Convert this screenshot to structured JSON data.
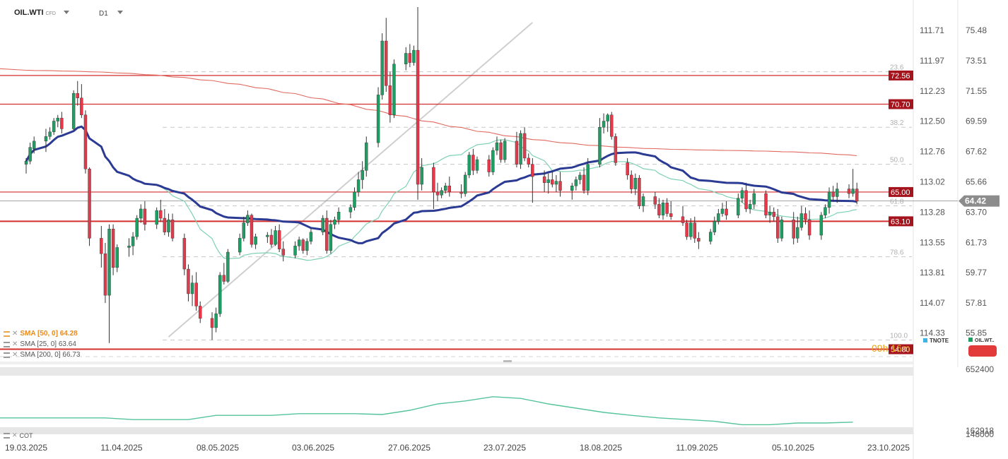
{
  "header": {
    "symbol": "OIL.WTI",
    "instrument_type": "CFD",
    "timeframe": "D1"
  },
  "legend": {
    "sma50": "SMA [50, 0] 64.28",
    "sma25": "SMA [25, 0] 63.64",
    "sma200": "SMA [200, 0] 66.73"
  },
  "countdown": "09h 16m",
  "tnote_label": "TNOTE",
  "oil_label": "OIL.WT..",
  "cot_label": "COT",
  "colors": {
    "bull": "#1e9e62",
    "bear": "#e23a4a",
    "sma50": "#2b3a93",
    "sma25": "#7fd1b3",
    "sma200": "#e06a60",
    "level": "#d32f2f",
    "tag": "#a5131c"
  },
  "chart_data": {
    "type": "candlestick",
    "x_tick_labels": [
      "19.03.2025",
      "11.04.2025",
      "08.05.2025",
      "03.06.2025",
      "27.06.2025",
      "23.07.2025",
      "18.08.2025",
      "11.09.2025",
      "05.10.2025",
      "23.10.2025"
    ],
    "right_axis": {
      "ticks": [
        "75.48",
        "73.51",
        "71.55",
        "69.59",
        "67.62",
        "65.66",
        "63.70",
        "61.73",
        "59.77",
        "57.81",
        "55.85"
      ],
      "range": [
        54.0,
        77.0
      ]
    },
    "left_axis": {
      "label": "TNOTE",
      "ticks": [
        "111.71",
        "111.97",
        "112.23",
        "112.50",
        "112.76",
        "113.02",
        "113.28",
        "113.55",
        "113.81",
        "114.07",
        "114.33"
      ]
    },
    "current_price": "64.42",
    "levels": [
      {
        "value": 72.56,
        "label": "72.56"
      },
      {
        "value": 70.7,
        "label": "70.70"
      },
      {
        "value": 65.0,
        "label": "65.00"
      },
      {
        "value": 63.1,
        "label": "63.10"
      },
      {
        "value": 54.8,
        "label": "54.80"
      }
    ],
    "fibonacci": [
      {
        "value": 72.8,
        "label": "23.6"
      },
      {
        "value": 69.2,
        "label": "38.2"
      },
      {
        "value": 66.8,
        "label": "50.0"
      },
      {
        "value": 64.1,
        "label": "61.8"
      },
      {
        "value": 60.8,
        "label": "78.6"
      },
      {
        "value": 55.4,
        "label": "100.0"
      }
    ],
    "trendline": [
      [
        "2025-04-24",
        55.6
      ],
      [
        "2025-07-25",
        76.0
      ]
    ],
    "candles": [
      [
        "2025-03-19",
        66.8,
        67.2,
        66.2,
        67.0
      ],
      [
        "2025-03-20",
        67.0,
        68.2,
        66.8,
        67.9
      ],
      [
        "2025-03-21",
        67.8,
        68.6,
        67.5,
        68.3
      ],
      [
        "2025-03-24",
        68.3,
        69.1,
        67.6,
        68.6
      ],
      [
        "2025-03-25",
        68.6,
        69.2,
        68.4,
        68.9
      ],
      [
        "2025-03-26",
        68.9,
        69.8,
        68.7,
        69.6
      ],
      [
        "2025-03-27",
        69.6,
        70.0,
        69.2,
        69.8
      ],
      [
        "2025-03-28",
        69.8,
        70.2,
        68.8,
        69.1
      ],
      [
        "2025-03-31",
        69.1,
        71.6,
        69.0,
        71.4
      ],
      [
        "2025-04-01",
        71.4,
        72.2,
        70.6,
        71.1
      ],
      [
        "2025-04-02",
        71.1,
        72.0,
        69.8,
        70.0
      ],
      [
        "2025-04-03",
        70.0,
        70.3,
        66.2,
        66.5
      ],
      [
        "2025-04-04",
        66.5,
        66.6,
        61.5,
        62.0
      ],
      [
        "2025-04-07",
        62.0,
        62.8,
        60.1,
        61.0
      ],
      [
        "2025-04-08",
        61.0,
        61.7,
        57.8,
        58.3
      ],
      [
        "2025-04-09",
        58.3,
        62.9,
        55.2,
        62.6
      ],
      [
        "2025-04-10",
        62.6,
        62.9,
        59.6,
        60.1
      ],
      [
        "2025-04-11",
        60.1,
        61.6,
        59.8,
        61.4
      ],
      [
        "2025-04-14",
        61.4,
        62.0,
        60.8,
        61.5
      ],
      [
        "2025-04-15",
        61.5,
        62.4,
        60.9,
        62.1
      ],
      [
        "2025-04-16",
        62.1,
        63.5,
        61.9,
        63.3
      ],
      [
        "2025-04-17",
        63.3,
        64.2,
        63.0,
        63.9
      ],
      [
        "2025-04-18",
        63.9,
        64.4,
        62.5,
        62.9
      ],
      [
        "2025-04-21",
        62.9,
        64.0,
        62.6,
        63.8
      ],
      [
        "2025-04-22",
        63.8,
        64.5,
        63.1,
        63.3
      ],
      [
        "2025-04-23",
        63.3,
        63.9,
        62.2,
        62.4
      ],
      [
        "2025-04-24",
        62.4,
        63.6,
        62.1,
        63.2
      ],
      [
        "2025-04-25",
        63.2,
        63.6,
        61.8,
        62.0
      ],
      [
        "2025-04-28",
        62.0,
        62.3,
        59.6,
        60.0
      ],
      [
        "2025-04-29",
        60.0,
        60.3,
        57.9,
        58.4
      ],
      [
        "2025-04-30",
        58.4,
        59.6,
        57.6,
        59.1
      ],
      [
        "2025-05-01",
        59.1,
        59.8,
        57.3,
        57.6
      ],
      [
        "2025-05-02",
        57.6,
        57.9,
        56.5,
        56.8
      ],
      [
        "2025-05-05",
        56.8,
        57.2,
        55.4,
        56.2
      ],
      [
        "2025-05-06",
        56.2,
        57.5,
        55.9,
        57.1
      ],
      [
        "2025-05-07",
        57.1,
        59.8,
        56.9,
        59.6
      ],
      [
        "2025-05-08",
        59.6,
        60.4,
        59.0,
        59.2
      ],
      [
        "2025-05-09",
        59.2,
        61.3,
        59.1,
        61.1
      ],
      [
        "2025-05-12",
        61.1,
        62.3,
        60.9,
        62.0
      ],
      [
        "2025-05-13",
        62.0,
        63.4,
        61.8,
        63.0
      ],
      [
        "2025-05-14",
        63.0,
        63.8,
        62.8,
        63.5
      ],
      [
        "2025-05-15",
        63.5,
        63.6,
        61.4,
        61.6
      ],
      [
        "2025-05-16",
        61.6,
        62.3,
        61.3,
        62.1
      ],
      [
        "2025-05-19",
        62.1,
        62.4,
        61.7,
        62.2
      ],
      [
        "2025-05-20",
        62.2,
        62.6,
        61.4,
        61.6
      ],
      [
        "2025-05-21",
        61.6,
        62.8,
        61.5,
        62.5
      ],
      [
        "2025-05-22",
        62.5,
        62.9,
        61.1,
        61.3
      ],
      [
        "2025-05-23",
        61.3,
        61.8,
        60.5,
        60.9
      ],
      [
        "2025-05-26",
        60.9,
        61.8,
        60.7,
        61.5
      ],
      [
        "2025-05-27",
        61.5,
        62.1,
        61.2,
        61.9
      ],
      [
        "2025-05-28",
        61.9,
        62.0,
        61.0,
        61.2
      ],
      [
        "2025-05-29",
        61.2,
        62.0,
        60.9,
        61.8
      ],
      [
        "2025-05-30",
        61.8,
        62.6,
        61.6,
        62.4
      ],
      [
        "2025-06-02",
        62.4,
        63.5,
        62.2,
        63.3
      ],
      [
        "2025-06-03",
        63.3,
        63.8,
        61.0,
        61.2
      ],
      [
        "2025-06-04",
        61.2,
        63.2,
        61.0,
        62.9
      ],
      [
        "2025-06-05",
        62.9,
        63.4,
        62.6,
        63.2
      ],
      [
        "2025-06-06",
        63.2,
        64.0,
        62.9,
        63.7
      ],
      [
        "2025-06-09",
        63.7,
        64.2,
        63.3,
        64.0
      ],
      [
        "2025-06-10",
        64.0,
        65.3,
        63.8,
        65.0
      ],
      [
        "2025-06-11",
        65.0,
        66.3,
        64.7,
        65.8
      ],
      [
        "2025-06-12",
        65.8,
        67.0,
        65.2,
        66.4
      ],
      [
        "2025-06-13",
        66.4,
        68.6,
        66.0,
        68.2
      ],
      [
        "2025-06-16",
        68.2,
        71.8,
        67.9,
        71.3
      ],
      [
        "2025-06-17",
        71.3,
        75.3,
        71.0,
        74.8
      ],
      [
        "2025-06-18",
        74.8,
        76.3,
        71.5,
        71.9
      ],
      [
        "2025-06-19",
        71.9,
        72.8,
        69.5,
        70.0
      ],
      [
        "2025-06-20",
        70.0,
        73.6,
        69.8,
        73.3
      ],
      [
        "2025-06-23",
        73.3,
        74.4,
        72.9,
        74.0
      ],
      [
        "2025-06-24",
        74.0,
        74.6,
        73.1,
        73.4
      ],
      [
        "2025-06-25",
        73.4,
        74.5,
        73.2,
        74.2
      ],
      [
        "2025-06-26",
        74.2,
        77.0,
        64.5,
        65.5
      ],
      [
        "2025-06-27",
        65.5,
        67.2,
        65.1,
        66.6
      ],
      [
        "2025-06-30",
        66.6,
        66.9,
        63.9,
        65.0
      ],
      [
        "2025-07-01",
        65.0,
        65.6,
        64.4,
        64.8
      ],
      [
        "2025-07-02",
        64.8,
        65.3,
        64.6,
        65.1
      ],
      [
        "2025-07-03",
        65.1,
        65.6,
        64.9,
        65.4
      ],
      [
        "2025-07-04",
        65.4,
        66.0,
        64.7,
        65.0
      ],
      [
        "2025-07-07",
        65.0,
        65.5,
        64.6,
        64.9
      ],
      [
        "2025-07-08",
        64.9,
        66.3,
        64.7,
        66.1
      ],
      [
        "2025-07-09",
        66.1,
        67.6,
        65.9,
        67.4
      ],
      [
        "2025-07-10",
        67.4,
        67.8,
        66.1,
        66.4
      ],
      [
        "2025-07-11",
        66.4,
        67.3,
        66.2,
        67.1
      ],
      [
        "2025-07-14",
        67.1,
        67.4,
        66.0,
        66.3
      ],
      [
        "2025-07-15",
        66.3,
        67.9,
        66.1,
        67.7
      ],
      [
        "2025-07-16",
        67.7,
        68.6,
        67.4,
        68.2
      ],
      [
        "2025-07-17",
        68.2,
        68.4,
        66.9,
        67.1
      ],
      [
        "2025-07-18",
        67.1,
        68.5,
        66.9,
        68.3
      ],
      [
        "2025-07-21",
        68.3,
        68.9,
        66.6,
        66.8
      ],
      [
        "2025-07-22",
        66.8,
        69.0,
        66.5,
        68.8
      ],
      [
        "2025-07-23",
        68.8,
        69.2,
        67.0,
        67.2
      ],
      [
        "2025-07-24",
        67.2,
        67.5,
        66.6,
        66.8
      ],
      [
        "2025-07-25",
        66.8,
        67.2,
        64.3,
        66.0
      ],
      [
        "2025-07-28",
        66.0,
        66.4,
        65.0,
        65.6
      ],
      [
        "2025-07-29",
        65.6,
        66.2,
        64.9,
        65.8
      ],
      [
        "2025-07-30",
        65.8,
        66.4,
        65.3,
        65.5
      ],
      [
        "2025-07-31",
        65.5,
        66.1,
        65.0,
        65.7
      ],
      [
        "2025-08-01",
        65.7,
        66.3,
        64.7,
        65.1
      ],
      [
        "2025-08-04",
        65.1,
        65.6,
        64.5,
        65.4
      ],
      [
        "2025-08-05",
        65.4,
        66.0,
        65.1,
        65.8
      ],
      [
        "2025-08-06",
        65.8,
        66.3,
        65.5,
        66.1
      ],
      [
        "2025-08-07",
        66.1,
        66.6,
        64.9,
        65.1
      ],
      [
        "2025-08-08",
        65.1,
        67.2,
        64.8,
        66.8
      ],
      [
        "2025-08-11",
        66.8,
        69.8,
        66.6,
        69.2
      ],
      [
        "2025-08-12",
        69.2,
        70.1,
        68.8,
        69.6
      ],
      [
        "2025-08-13",
        69.6,
        70.1,
        68.9,
        70.0
      ],
      [
        "2025-08-14",
        70.0,
        70.2,
        68.4,
        68.6
      ],
      [
        "2025-08-15",
        68.6,
        68.8,
        66.7,
        66.9
      ],
      [
        "2025-08-18",
        66.9,
        67.2,
        65.8,
        66.1
      ],
      [
        "2025-08-19",
        66.1,
        66.4,
        64.9,
        65.2
      ],
      [
        "2025-08-20",
        65.2,
        66.2,
        64.8,
        65.9
      ],
      [
        "2025-08-21",
        65.9,
        66.1,
        63.9,
        64.1
      ],
      [
        "2025-08-22",
        64.1,
        64.9,
        63.7,
        64.7
      ],
      [
        "2025-08-25",
        64.7,
        65.0,
        63.9,
        64.2
      ],
      [
        "2025-08-26",
        64.2,
        64.6,
        63.3,
        63.5
      ],
      [
        "2025-08-27",
        63.5,
        64.5,
        63.2,
        64.3
      ],
      [
        "2025-08-28",
        64.3,
        64.6,
        63.4,
        63.6
      ],
      [
        "2025-08-29",
        63.6,
        64.4,
        63.2,
        63.4
      ],
      [
        "2025-09-01",
        63.4,
        64.1,
        62.8,
        63.0
      ],
      [
        "2025-09-02",
        63.0,
        63.2,
        61.9,
        62.1
      ],
      [
        "2025-09-03",
        62.1,
        63.3,
        61.9,
        63.0
      ],
      [
        "2025-09-04",
        63.0,
        63.4,
        61.7,
        62.0
      ],
      [
        "2025-09-05",
        62.0,
        62.4,
        61.3,
        61.8
      ],
      [
        "2025-09-08",
        61.8,
        62.6,
        61.6,
        62.4
      ],
      [
        "2025-09-09",
        62.4,
        63.4,
        62.2,
        63.1
      ],
      [
        "2025-09-10",
        63.1,
        63.9,
        62.9,
        63.6
      ],
      [
        "2025-09-11",
        63.6,
        64.3,
        63.4,
        63.9
      ],
      [
        "2025-09-12",
        63.9,
        64.4,
        63.2,
        63.5
      ],
      [
        "2025-09-15",
        63.5,
        64.9,
        63.3,
        64.6
      ],
      [
        "2025-09-16",
        64.6,
        65.3,
        64.3,
        65.1
      ],
      [
        "2025-09-17",
        65.1,
        65.6,
        63.7,
        63.9
      ],
      [
        "2025-09-18",
        63.9,
        64.5,
        63.6,
        64.2
      ],
      [
        "2025-09-19",
        64.2,
        65.2,
        63.9,
        64.9
      ],
      [
        "2025-09-22",
        64.9,
        65.1,
        63.3,
        63.5
      ],
      [
        "2025-09-23",
        63.5,
        64.1,
        63.0,
        63.7
      ],
      [
        "2025-09-24",
        63.7,
        64.0,
        63.1,
        63.4
      ],
      [
        "2025-09-25",
        63.4,
        63.9,
        61.7,
        62.0
      ],
      [
        "2025-09-26",
        62.0,
        63.4,
        61.8,
        63.2
      ],
      [
        "2025-09-29",
        63.2,
        63.7,
        61.6,
        62.0
      ],
      [
        "2025-09-30",
        62.0,
        63.4,
        61.7,
        62.7
      ],
      [
        "2025-10-01",
        62.7,
        64.1,
        62.5,
        63.6
      ],
      [
        "2025-10-02",
        63.6,
        64.0,
        62.9,
        63.2
      ],
      [
        "2025-10-03",
        63.2,
        63.8,
        61.9,
        62.2
      ],
      [
        "2025-10-06",
        62.2,
        63.7,
        61.9,
        63.5
      ],
      [
        "2025-10-07",
        63.5,
        64.2,
        63.3,
        64.0
      ],
      [
        "2025-10-08",
        64.0,
        65.3,
        63.6,
        65.0
      ],
      [
        "2025-10-09",
        65.0,
        65.4,
        64.4,
        64.7
      ],
      [
        "2025-10-10",
        64.7,
        65.6,
        64.3,
        65.2
      ],
      [
        "2025-10-13",
        65.2,
        65.5,
        64.6,
        64.9
      ],
      [
        "2025-10-14",
        64.9,
        66.5,
        64.7,
        65.2
      ],
      [
        "2025-10-15",
        65.2,
        65.6,
        64.2,
        64.4
      ]
    ],
    "cot": {
      "label": "COT",
      "ticks": [
        "652400",
        "162918",
        "148000"
      ],
      "points": [
        [
          "2025-03-19",
          0.22
        ],
        [
          "2025-04-08",
          0.22
        ],
        [
          "2025-04-15",
          0.18
        ],
        [
          "2025-04-29",
          0.18
        ],
        [
          "2025-05-06",
          0.28
        ],
        [
          "2025-05-20",
          0.28
        ],
        [
          "2025-05-27",
          0.32
        ],
        [
          "2025-06-10",
          0.32
        ],
        [
          "2025-06-17",
          0.3
        ],
        [
          "2025-06-24",
          0.4
        ],
        [
          "2025-07-01",
          0.55
        ],
        [
          "2025-07-08",
          0.62
        ],
        [
          "2025-07-15",
          0.72
        ],
        [
          "2025-07-22",
          0.68
        ],
        [
          "2025-07-29",
          0.55
        ],
        [
          "2025-08-05",
          0.45
        ],
        [
          "2025-08-12",
          0.35
        ],
        [
          "2025-08-19",
          0.28
        ],
        [
          "2025-08-26",
          0.22
        ],
        [
          "2025-09-02",
          0.18
        ],
        [
          "2025-09-09",
          0.14
        ],
        [
          "2025-09-16",
          0.06
        ],
        [
          "2025-09-23",
          0.06
        ],
        [
          "2025-09-30",
          0.1
        ],
        [
          "2025-10-07",
          0.1
        ],
        [
          "2025-10-14",
          0.12
        ]
      ]
    }
  }
}
